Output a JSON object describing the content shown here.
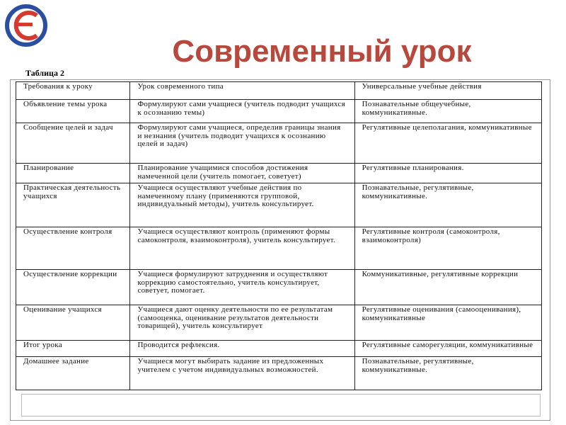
{
  "title": "Современный урок",
  "table_caption": "Таблица 2",
  "table": {
    "header": [
      "Требования к уроку",
      "Урок современного типа",
      "Универсальные учебные действия"
    ],
    "rows": [
      [
        "Объявление темы урока",
        "Формулируют сами учащиеся (учитель подводит учащихся к осознанию темы)",
        "Познавательные общеучебные, коммуникативные."
      ],
      [
        "Сообщение целей и задач",
        "Формулируют сами учащиеся, определив границы знания и незнания (учитель подводит учащихся к осознанию целей и задач)",
        "Регулятивные целеполагания, коммуникативные"
      ],
      [
        "Планирование",
        "Планирование учащимися способов достижения намеченной цели (учитель помогает, советует)",
        "Регулятивные планирования."
      ],
      [
        "Практическая деятельность учащихся",
        "Учащиеся осуществляют учебные действия по намеченному плану (применяются групповой, индивидуальный методы), учитель консультирует.",
        "Познавательные, регулятивные, коммуникативные."
      ],
      [
        "Осуществление контроля",
        "Учащиеся осуществляют контроль (применяют формы самоконтроля, взаимоконтроля), учитель консультирует.",
        "Регулятивные контроля (самоконтроля, взаимоконтроля)"
      ],
      [
        "Осуществление коррекции",
        "Учащиеся формулируют затруднения и осуществляют коррекцию самостоятельно, учитель консультирует, советует, помогает.",
        "Коммуникативные, регулятивные коррекции"
      ],
      [
        "Оценивание учащихся",
        "Учащиеся дают оценку деятельности по ее результатам (самооценка, оценивание результатов деятельности товарищей), учитель консультирует",
        "Регулятивные оценивания (самооценивания), коммуникативные"
      ],
      [
        "Итог урока",
        "Проводится рефлексия.",
        "Регулятивные саморегуляции, коммуникативные"
      ],
      [
        "Домашнее задание",
        "Учащиеся могут выбирать задание из предложенных учителем с учетом индивидуальных возможностей.",
        "Познавательные, регулятивные, коммуникативные."
      ]
    ]
  }
}
